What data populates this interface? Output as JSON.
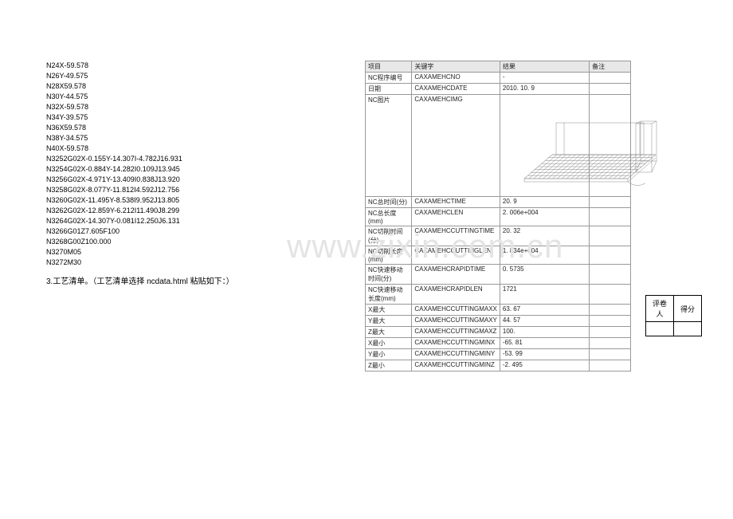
{
  "nc_lines": [
    "N24X-59.578",
    "N26Y-49.575",
    "N28X59.578",
    "N30Y-44.575",
    "N32X-59.578",
    "N34Y-39.575",
    "N36X59.578",
    "N38Y-34.575",
    "N40X-59.578",
    "N3252G02X-0.155Y-14.307I-4.782J16.931",
    "N3254G02X-0.884Y-14.282I0.109J13.945",
    "N3256G02X-4.971Y-13.409I0.838J13.920",
    "N3258G02X-8.077Y-11.812I4.592J12.756",
    "N3260G02X-11.495Y-8.538I9.952J13.805",
    "N3262G02X-12.859Y-6.212I11.490J8.299",
    "N3264G02X-14.307Y-0.081I12.250J6.131",
    "N3266G01Z7.605F100",
    "N3268G00Z100.000",
    "N3270M05",
    "N3272M30"
  ],
  "section3_label": "3.工艺清单。（工艺清单选择 ncdata.html 粘贴如下：）",
  "watermark_text": "www.zixin.com.cn",
  "table": {
    "headers": {
      "item": "项目",
      "key": "关键字",
      "result": "结果",
      "note": "备注"
    },
    "rows_top": [
      {
        "item": "NC程序编号",
        "key": "CAXAMEHCNO",
        "result": "-",
        "note": ""
      },
      {
        "item": "日期",
        "key": "CAXAMEHCDATE",
        "result": "2010. 10. 9",
        "note": ""
      }
    ],
    "image_row": {
      "item": "NC图片",
      "key": "CAXAMEHCIMG",
      "result": "",
      "note": ""
    },
    "rows_bottom": [
      {
        "item": "NC总时间(分)",
        "key": "CAXAMEHCTIME",
        "result": "20. 9",
        "note": ""
      },
      {
        "item": "NC总长度(mm)",
        "key": "CAXAMEHCLEN",
        "result": "2. 006e+004",
        "note": ""
      },
      {
        "item": "NC切削时间(分)",
        "key": "CAXAMEHCCUTTINGTIME",
        "result": "20. 32",
        "note": ""
      },
      {
        "item": "NC切削长度(mm)",
        "key": "CAXAMEHCCUTTINGLEN",
        "result": "1. 834e+004",
        "note": ""
      },
      {
        "item": "NC快速移动时间(分)",
        "key": "CAXAMEHCRAPIDTIME",
        "result": "0. 5735",
        "note": ""
      },
      {
        "item": "NC快速移动长度(mm)",
        "key": "CAXAMEHCRAPIDLEN",
        "result": "1721",
        "note": ""
      },
      {
        "item": "X最大",
        "key": "CAXAMEHCCUTTINGMAXX",
        "result": "63. 67",
        "note": ""
      },
      {
        "item": "Y最大",
        "key": "CAXAMEHCCUTTINGMAXY",
        "result": "44. 57",
        "note": ""
      },
      {
        "item": "Z最大",
        "key": "CAXAMEHCCUTTINGMAXZ",
        "result": "100.",
        "note": ""
      },
      {
        "item": "X最小",
        "key": "CAXAMEHCCUTTINGMINX",
        "result": "-65. 81",
        "note": ""
      },
      {
        "item": "Y最小",
        "key": "CAXAMEHCCUTTINGMINY",
        "result": "-53. 99",
        "note": ""
      },
      {
        "item": "Z最小",
        "key": "CAXAMEHCCUTTINGMINZ",
        "result": "-2. 495",
        "note": ""
      }
    ]
  },
  "score": {
    "reviewer_label": "评卷人",
    "score_label": "得分"
  },
  "wireframe": {
    "stroke": "#888888",
    "stroke_width": 0.5,
    "width": 190,
    "height": 118
  }
}
